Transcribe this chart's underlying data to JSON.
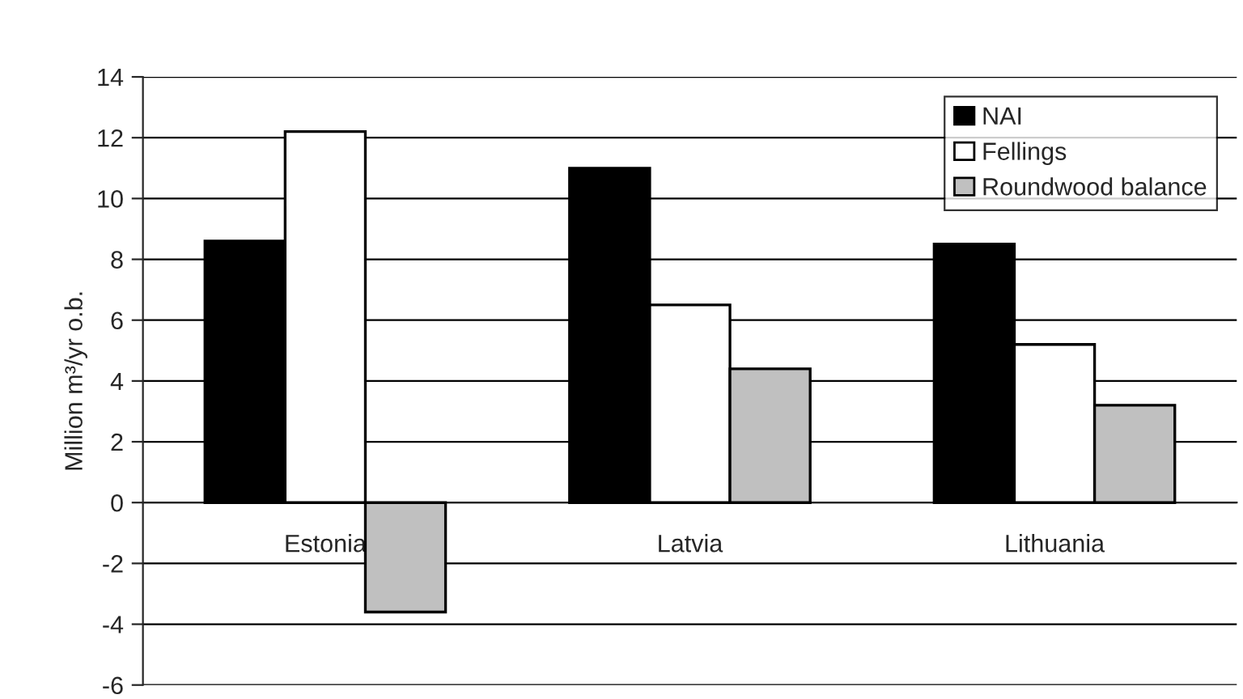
{
  "chart_data": {
    "type": "bar",
    "ylabel": "Million m³/yr o.b.",
    "categories": [
      "Estonia",
      "Latvia",
      "Lithuania"
    ],
    "series": [
      {
        "name": "NAI",
        "color": "#000000",
        "values": [
          8.6,
          11.0,
          8.5
        ]
      },
      {
        "name": "Fellings",
        "color": "#ffffff",
        "values": [
          12.2,
          6.5,
          5.2
        ]
      },
      {
        "name": "Roundwood balance",
        "color": "#c0c0c0",
        "values": [
          -3.6,
          4.4,
          3.2
        ]
      }
    ],
    "ylim": [
      -6,
      14
    ],
    "yticks": [
      -6,
      -4,
      -2,
      0,
      2,
      4,
      6,
      8,
      10,
      12,
      14
    ],
    "grid": "y",
    "legend": "top right"
  }
}
